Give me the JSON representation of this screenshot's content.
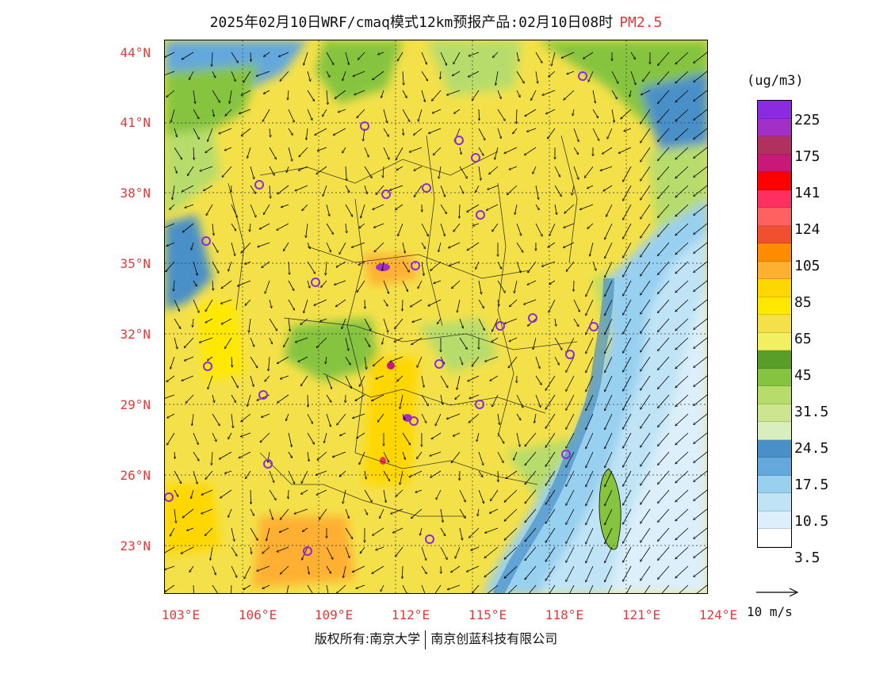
{
  "title": {
    "main": "2025年02月10日WRF/cmaq模式12km预报产品:02月10日08时",
    "species": "PM2.5"
  },
  "latitude_labels": [
    "44°N",
    "41°N",
    "38°N",
    "35°N",
    "32°N",
    "29°N",
    "26°N",
    "23°N"
  ],
  "longitude_labels": [
    "103°E",
    "106°E",
    "109°E",
    "112°E",
    "115°E",
    "118°E",
    "121°E",
    "124°E"
  ],
  "legend": {
    "unit": "(ug/m3)",
    "labels": [
      "225",
      "175",
      "141",
      "124",
      "105",
      "85",
      "65",
      "45",
      "31.5",
      "24.5",
      "17.5",
      "10.5",
      "3.5"
    ],
    "colors": [
      "#8a2be2",
      "#a12fc8",
      "#b03060",
      "#c8187a",
      "#ff0000",
      "#ff3060",
      "#ff6060",
      "#f05030",
      "#ff8c00",
      "#ffb030",
      "#ffd700",
      "#ffe800",
      "#f4e14a",
      "#f0f060",
      "#5a9e2a",
      "#86c440",
      "#b8dc6c",
      "#cde58e",
      "#d8eebc",
      "#4a90c8",
      "#64a8dc",
      "#98d0f0",
      "#c0e4f6",
      "#dceffa",
      "#ffffff"
    ]
  },
  "wind_reference": "10 m/s",
  "footer": {
    "left": "版权所有:南京大学",
    "right": "南京创蓝科技有限公司"
  }
}
